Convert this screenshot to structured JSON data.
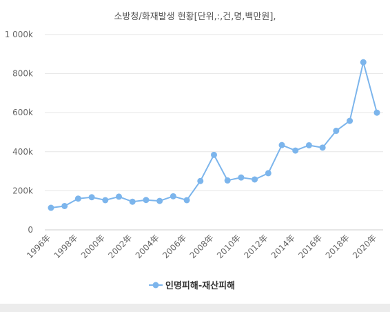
{
  "chart_data": {
    "type": "line",
    "title": "소방청/화재발생 현황[단위,:,건,명,백만원],",
    "xlabel": "",
    "ylabel": "",
    "ylim": [
      0,
      1000000
    ],
    "yticks": [
      {
        "value": 0,
        "label": "0"
      },
      {
        "value": 200000,
        "label": "200k"
      },
      {
        "value": 400000,
        "label": "400k"
      },
      {
        "value": 600000,
        "label": "600k"
      },
      {
        "value": 800000,
        "label": "800k"
      },
      {
        "value": 1000000,
        "label": "1 000k"
      }
    ],
    "categories": [
      "1996年",
      "1997年",
      "1998年",
      "1999年",
      "2000年",
      "2001年",
      "2002年",
      "2003年",
      "2004年",
      "2005年",
      "2006年",
      "2007年",
      "2008年",
      "2009年",
      "2010年",
      "2011年",
      "2012年",
      "2013年",
      "2014年",
      "2015年",
      "2016年",
      "2017年",
      "2018年",
      "2019年",
      "2020年"
    ],
    "xtick_labels": [
      "1996年",
      "1998年",
      "2000年",
      "2002年",
      "2004年",
      "2006年",
      "2008年",
      "2010年",
      "2012年",
      "2014年",
      "2016年",
      "2018年",
      "2020年"
    ],
    "series": [
      {
        "name": "인명피해-재산피해",
        "color": "#7cb5ec",
        "values": [
          113000,
          122000,
          160000,
          167000,
          152000,
          170000,
          144000,
          153000,
          148000,
          172000,
          152000,
          250000,
          384000,
          253000,
          268000,
          258000,
          290000,
          434000,
          406000,
          433000,
          421000,
          507000,
          558000,
          858000,
          600000
        ]
      }
    ],
    "grid": true,
    "legend_position": "bottom-center"
  }
}
